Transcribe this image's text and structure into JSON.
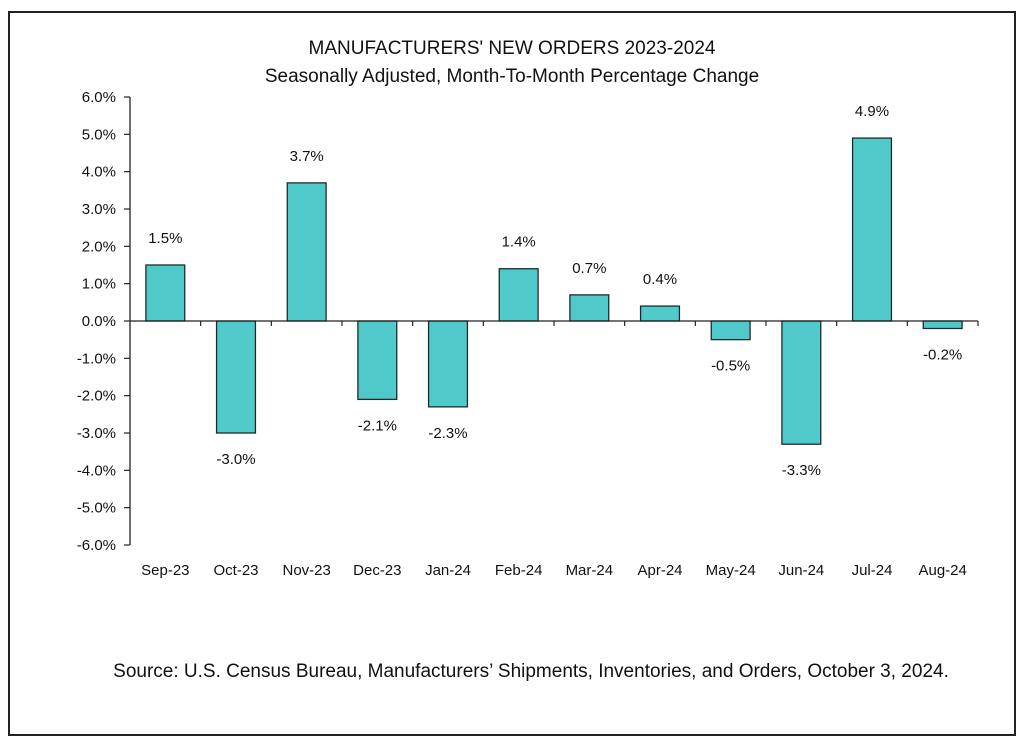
{
  "chart_data": {
    "type": "bar",
    "title": "MANUFACTURERS' NEW ORDERS 2023-2024",
    "subtitle": "Seasonally Adjusted,  Month-To-Month Percentage Change",
    "xlabel": "",
    "ylabel": "",
    "categories": [
      "Sep-23",
      "Oct-23",
      "Nov-23",
      "Dec-23",
      "Jan-24",
      "Feb-24",
      "Mar-24",
      "Apr-24",
      "May-24",
      "Jun-24",
      "Jul-24",
      "Aug-24"
    ],
    "values": [
      1.5,
      -3.0,
      3.7,
      -2.1,
      -2.3,
      1.4,
      0.7,
      0.4,
      -0.5,
      -3.3,
      4.9,
      -0.2
    ],
    "data_labels": [
      "1.5%",
      "-3.0%",
      "3.7%",
      "-2.1%",
      "-2.3%",
      "1.4%",
      "0.7%",
      "0.4%",
      "-0.5%",
      "-3.3%",
      "4.9%",
      "-0.2%"
    ],
    "ylim": [
      -6.0,
      6.0
    ],
    "yticks": [
      6.0,
      5.0,
      4.0,
      3.0,
      2.0,
      1.0,
      0.0,
      -1.0,
      -2.0,
      -3.0,
      -4.0,
      -5.0,
      -6.0
    ],
    "ytick_labels": [
      "6.0%",
      "5.0%",
      "4.0%",
      "3.0%",
      "2.0%",
      "1.0%",
      "0.0%",
      "-1.0%",
      "-2.0%",
      "-3.0%",
      "-4.0%",
      "-5.0%",
      "-6.0%"
    ],
    "grid": false,
    "legend": "none",
    "bar_color": "#4fc9c9",
    "bar_edge_color": "#1f2b2b",
    "source": "Source: U.S. Census Bureau, Manufacturers’ Shipments, Inventories, and Orders, October 3, 2024."
  }
}
